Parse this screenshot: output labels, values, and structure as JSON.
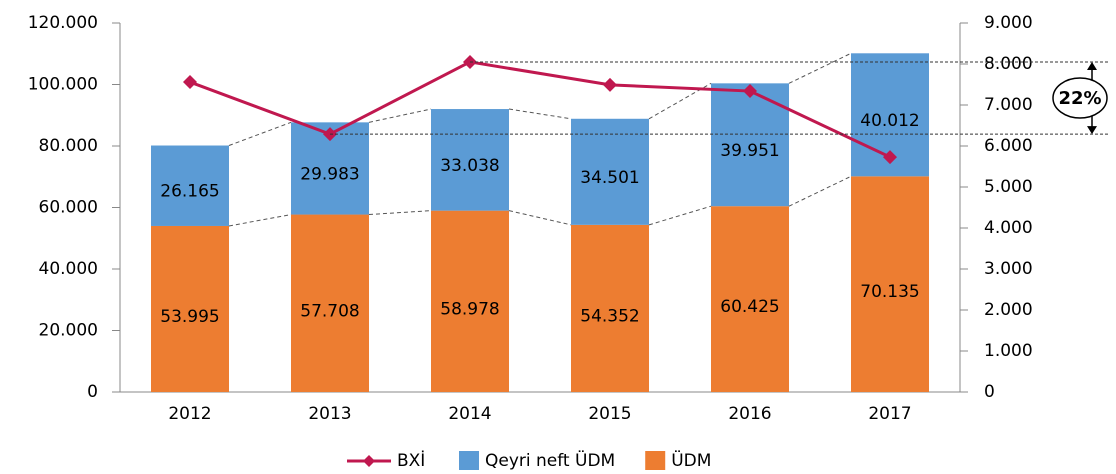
{
  "chart_data": {
    "type": "bar",
    "stacked": true,
    "categories": [
      "2012",
      "2013",
      "2014",
      "2015",
      "2016",
      "2017"
    ],
    "series": [
      {
        "name": "BXİ",
        "type": "line",
        "axis": "y2",
        "color": "#c0184f",
        "values": [
          7560,
          6290,
          8050,
          7490,
          7340,
          5730
        ]
      },
      {
        "name": "Qeyri neft ÜDM",
        "type": "bar",
        "color": "#5b9bd5",
        "values": [
          26165,
          29983,
          33038,
          34501,
          39951,
          40012
        ],
        "value_labels": [
          "26.165",
          "29.983",
          "33.038",
          "34.501",
          "39.951",
          "40.012"
        ]
      },
      {
        "name": "ÜDM",
        "type": "bar",
        "color": "#ed7d31",
        "values": [
          53995,
          57708,
          58978,
          54352,
          60425,
          70135
        ],
        "value_labels": [
          "53.995",
          "57.708",
          "58.978",
          "54.352",
          "60.425",
          "70.135"
        ]
      }
    ],
    "ylim": [
      0,
      120000
    ],
    "yticks": [
      0,
      {
        "value": 20000,
        "label": "20.000"
      },
      {
        "value": 40000,
        "label": "40.000"
      },
      {
        "value": 60000,
        "label": "60.000"
      },
      {
        "value": 80000,
        "label": "80.000"
      },
      {
        "value": 100000,
        "label": "100.000"
      },
      {
        "value": 120000,
        "label": "120.000"
      }
    ],
    "y2lim": [
      0,
      9000
    ],
    "y2ticks": [
      0,
      {
        "value": 1000,
        "label": "1.000"
      },
      {
        "value": 2000,
        "label": "2.000"
      },
      {
        "value": 3000,
        "label": "3.000"
      },
      {
        "value": 4000,
        "label": "4.000"
      },
      {
        "value": 5000,
        "label": "5.000"
      },
      {
        "value": 6000,
        "label": "6.000"
      },
      {
        "value": 7000,
        "label": "7.000"
      },
      {
        "value": 8000,
        "label": "8.000"
      },
      {
        "value": 9000,
        "label": "9.000"
      }
    ],
    "annotation": "22%",
    "grid": false,
    "legend": "bottom"
  }
}
